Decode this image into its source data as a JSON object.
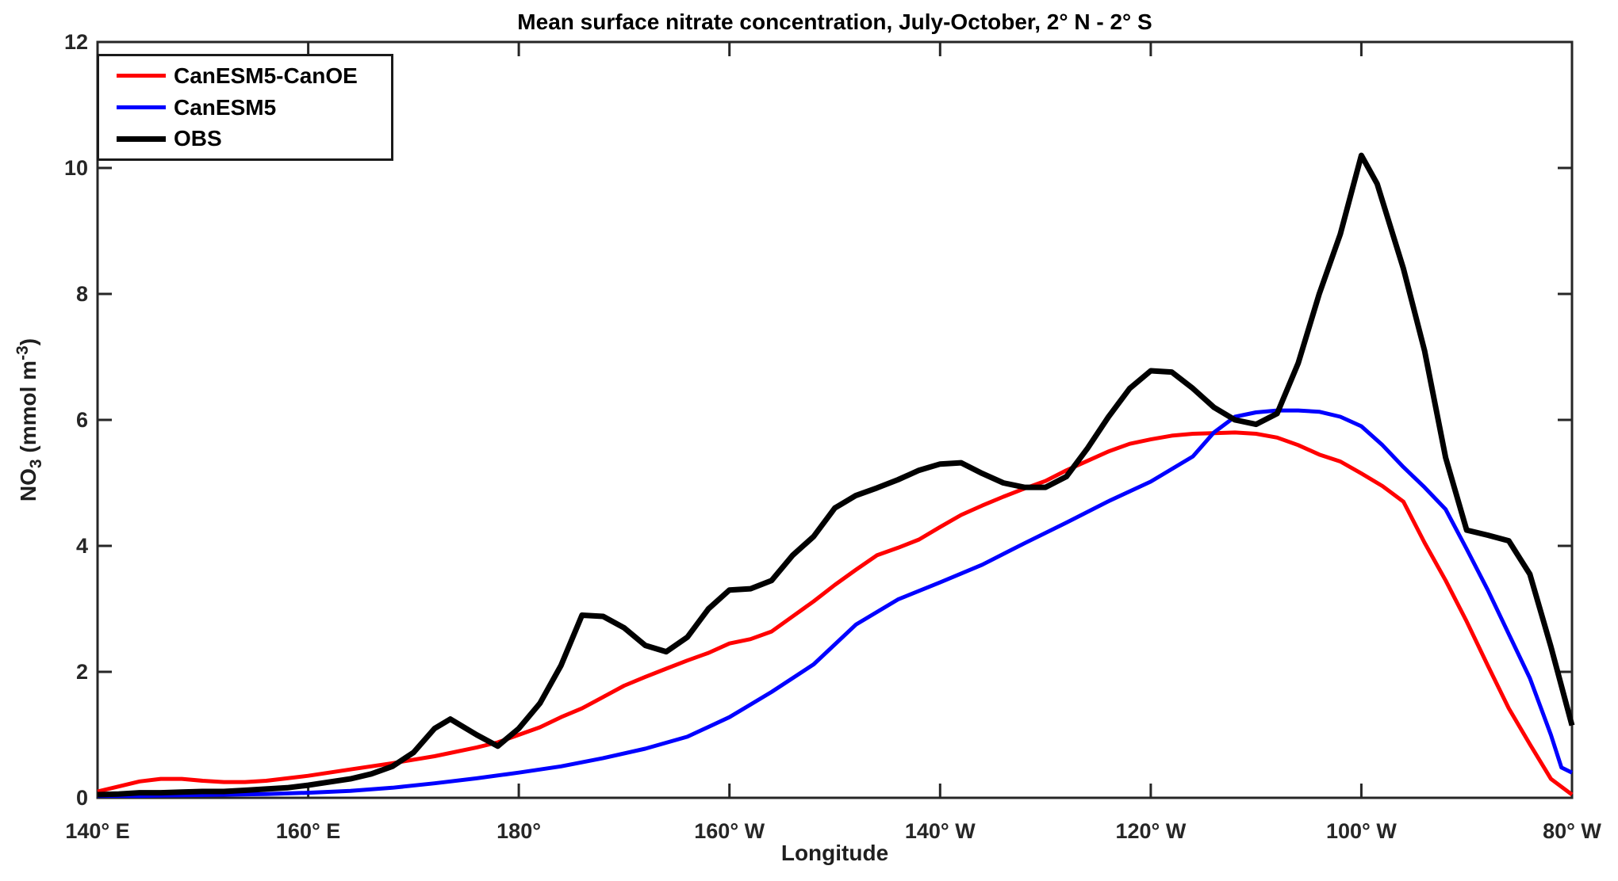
{
  "title": "Mean surface nitrate concentration, July-October, 2° N - 2° S",
  "x_axis": {
    "label": "Longitude",
    "range_deg_east": [
      140,
      280
    ],
    "ticks": [
      {
        "value": 140,
        "label": "140° E"
      },
      {
        "value": 160,
        "label": "160° E"
      },
      {
        "value": 180,
        "label": "180°"
      },
      {
        "value": 200,
        "label": "160° W"
      },
      {
        "value": 220,
        "label": "140° W"
      },
      {
        "value": 240,
        "label": "120° W"
      },
      {
        "value": 260,
        "label": "100° W"
      },
      {
        "value": 280,
        "label": "80° W"
      }
    ]
  },
  "y_axis": {
    "label_parts": [
      "NO",
      "3",
      " (mmol m",
      "-3",
      ")"
    ],
    "range": [
      0,
      12
    ],
    "ticks": [
      0,
      2,
      4,
      6,
      8,
      10,
      12
    ]
  },
  "legend": [
    {
      "label": "CanESM5-CanOE",
      "color": "#ff0000",
      "line_width": 5
    },
    {
      "label": "CanESM5",
      "color": "#0000ff",
      "line_width": 5
    },
    {
      "label": "OBS",
      "color": "#000000",
      "line_width": 7
    }
  ],
  "colors": {
    "axis": "#262626",
    "tick_text": "#262626",
    "title_text": "#000000"
  },
  "chart_data": {
    "type": "line",
    "title": "Mean surface nitrate concentration, July-October, 2° N - 2° S",
    "xlabel": "Longitude",
    "ylabel": "NO3 (mmol m^-3)",
    "x_convention": "longitude in continuous degrees east: 140=140E, 180=180, 200=160W, 280=80W",
    "xlim": [
      140,
      280
    ],
    "ylim": [
      0,
      12
    ],
    "grid": false,
    "legend_position": "top-left",
    "series": [
      {
        "name": "CanESM5-CanOE",
        "color": "#ff0000",
        "line_width": 5,
        "points": [
          [
            140,
            0.1
          ],
          [
            142,
            0.18
          ],
          [
            144,
            0.26
          ],
          [
            146,
            0.3
          ],
          [
            148,
            0.3
          ],
          [
            150,
            0.27
          ],
          [
            152,
            0.25
          ],
          [
            154,
            0.25
          ],
          [
            156,
            0.27
          ],
          [
            158,
            0.31
          ],
          [
            160,
            0.35
          ],
          [
            164,
            0.45
          ],
          [
            168,
            0.55
          ],
          [
            172,
            0.66
          ],
          [
            176,
            0.8
          ],
          [
            178,
            0.88
          ],
          [
            180,
            1.0
          ],
          [
            182,
            1.12
          ],
          [
            184,
            1.28
          ],
          [
            186,
            1.42
          ],
          [
            188,
            1.6
          ],
          [
            190,
            1.78
          ],
          [
            192,
            1.92
          ],
          [
            194,
            2.05
          ],
          [
            196,
            2.18
          ],
          [
            198,
            2.3
          ],
          [
            200,
            2.45
          ],
          [
            202,
            2.52
          ],
          [
            204,
            2.64
          ],
          [
            206,
            2.88
          ],
          [
            208,
            3.12
          ],
          [
            210,
            3.38
          ],
          [
            212,
            3.62
          ],
          [
            214,
            3.85
          ],
          [
            216,
            3.97
          ],
          [
            218,
            4.1
          ],
          [
            220,
            4.3
          ],
          [
            222,
            4.49
          ],
          [
            224,
            4.64
          ],
          [
            226,
            4.78
          ],
          [
            228,
            4.91
          ],
          [
            230,
            5.03
          ],
          [
            232,
            5.2
          ],
          [
            234,
            5.35
          ],
          [
            236,
            5.5
          ],
          [
            238,
            5.62
          ],
          [
            240,
            5.69
          ],
          [
            242,
            5.75
          ],
          [
            244,
            5.78
          ],
          [
            246,
            5.79
          ],
          [
            248,
            5.8
          ],
          [
            250,
            5.78
          ],
          [
            252,
            5.72
          ],
          [
            254,
            5.6
          ],
          [
            256,
            5.45
          ],
          [
            258,
            5.34
          ],
          [
            260,
            5.15
          ],
          [
            262,
            4.95
          ],
          [
            264,
            4.7
          ],
          [
            266,
            4.05
          ],
          [
            268,
            3.45
          ],
          [
            270,
            2.8
          ],
          [
            272,
            2.1
          ],
          [
            274,
            1.42
          ],
          [
            276,
            0.85
          ],
          [
            278,
            0.3
          ],
          [
            280,
            0.05
          ]
        ]
      },
      {
        "name": "CanESM5",
        "color": "#0000ff",
        "line_width": 5,
        "points": [
          [
            140,
            0.03
          ],
          [
            144,
            0.03
          ],
          [
            148,
            0.04
          ],
          [
            152,
            0.05
          ],
          [
            156,
            0.06
          ],
          [
            160,
            0.08
          ],
          [
            164,
            0.11
          ],
          [
            168,
            0.16
          ],
          [
            172,
            0.23
          ],
          [
            176,
            0.31
          ],
          [
            180,
            0.4
          ],
          [
            184,
            0.5
          ],
          [
            188,
            0.63
          ],
          [
            192,
            0.78
          ],
          [
            196,
            0.97
          ],
          [
            200,
            1.28
          ],
          [
            204,
            1.68
          ],
          [
            208,
            2.12
          ],
          [
            212,
            2.75
          ],
          [
            216,
            3.15
          ],
          [
            220,
            3.42
          ],
          [
            224,
            3.7
          ],
          [
            228,
            4.04
          ],
          [
            232,
            4.37
          ],
          [
            236,
            4.71
          ],
          [
            240,
            5.02
          ],
          [
            244,
            5.42
          ],
          [
            246,
            5.8
          ],
          [
            248,
            6.05
          ],
          [
            250,
            6.12
          ],
          [
            252,
            6.15
          ],
          [
            254,
            6.15
          ],
          [
            256,
            6.13
          ],
          [
            258,
            6.05
          ],
          [
            260,
            5.9
          ],
          [
            262,
            5.6
          ],
          [
            264,
            5.25
          ],
          [
            266,
            4.93
          ],
          [
            268,
            4.58
          ],
          [
            270,
            3.95
          ],
          [
            272,
            3.3
          ],
          [
            274,
            2.6
          ],
          [
            276,
            1.9
          ],
          [
            278,
            1.0
          ],
          [
            279,
            0.48
          ],
          [
            280,
            0.4
          ]
        ]
      },
      {
        "name": "OBS",
        "color": "#000000",
        "line_width": 7,
        "points": [
          [
            140,
            0.05
          ],
          [
            142,
            0.06
          ],
          [
            144,
            0.08
          ],
          [
            146,
            0.08
          ],
          [
            148,
            0.09
          ],
          [
            150,
            0.1
          ],
          [
            152,
            0.1
          ],
          [
            154,
            0.12
          ],
          [
            156,
            0.14
          ],
          [
            158,
            0.16
          ],
          [
            160,
            0.2
          ],
          [
            162,
            0.25
          ],
          [
            164,
            0.3
          ],
          [
            166,
            0.38
          ],
          [
            168,
            0.5
          ],
          [
            170,
            0.72
          ],
          [
            172,
            1.1
          ],
          [
            173.5,
            1.25
          ],
          [
            176,
            1.0
          ],
          [
            178,
            0.82
          ],
          [
            180,
            1.1
          ],
          [
            182,
            1.5
          ],
          [
            184,
            2.1
          ],
          [
            186,
            2.9
          ],
          [
            188,
            2.88
          ],
          [
            190,
            2.7
          ],
          [
            192,
            2.42
          ],
          [
            194,
            2.32
          ],
          [
            196,
            2.55
          ],
          [
            198,
            3.0
          ],
          [
            200,
            3.3
          ],
          [
            202,
            3.32
          ],
          [
            204,
            3.45
          ],
          [
            206,
            3.85
          ],
          [
            208,
            4.15
          ],
          [
            210,
            4.6
          ],
          [
            212,
            4.8
          ],
          [
            214,
            4.92
          ],
          [
            216,
            5.05
          ],
          [
            218,
            5.2
          ],
          [
            220,
            5.3
          ],
          [
            222,
            5.32
          ],
          [
            224,
            5.15
          ],
          [
            226,
            5.0
          ],
          [
            228,
            4.93
          ],
          [
            230,
            4.93
          ],
          [
            232,
            5.1
          ],
          [
            234,
            5.55
          ],
          [
            236,
            6.05
          ],
          [
            238,
            6.5
          ],
          [
            240,
            6.78
          ],
          [
            242,
            6.76
          ],
          [
            244,
            6.5
          ],
          [
            246,
            6.2
          ],
          [
            248,
            6.0
          ],
          [
            250,
            5.93
          ],
          [
            252,
            6.1
          ],
          [
            254,
            6.9
          ],
          [
            256,
            8.0
          ],
          [
            258,
            8.95
          ],
          [
            260,
            10.2
          ],
          [
            261.5,
            9.75
          ],
          [
            264,
            8.4
          ],
          [
            266,
            7.1
          ],
          [
            268,
            5.4
          ],
          [
            270,
            4.25
          ],
          [
            272,
            4.17
          ],
          [
            274,
            4.08
          ],
          [
            276,
            3.55
          ],
          [
            278,
            2.4
          ],
          [
            280,
            1.15
          ]
        ]
      }
    ]
  }
}
